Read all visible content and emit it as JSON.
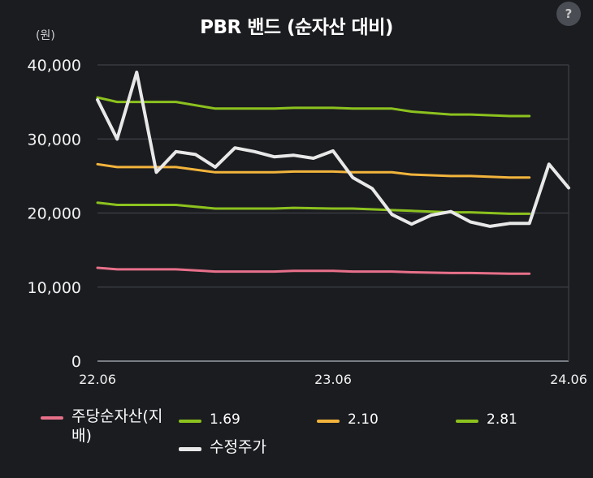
{
  "help_button": {
    "label": "?"
  },
  "chart_data": {
    "type": "line",
    "title": "PBR 밴드 (순자산 대비)",
    "ylabel": "(원)",
    "xlabel": "",
    "ylim": [
      0,
      40000
    ],
    "y_ticks": [
      0,
      10000,
      20000,
      30000,
      40000
    ],
    "y_tick_labels": [
      "0",
      "10,000",
      "20,000",
      "30,000",
      "40,000"
    ],
    "x_range": [
      "2022-06",
      "2024-06"
    ],
    "x_ticks": [
      "2022-06",
      "2023-06",
      "2024-06"
    ],
    "x_tick_labels": [
      "22.06",
      "23.06",
      "24.06"
    ],
    "grid": true,
    "legend_position": "bottom",
    "series": [
      {
        "name": "주당순자산(지배)",
        "color": "#e8708a",
        "x": [
          "2022-06",
          "2022-07",
          "2022-09",
          "2022-10",
          "2022-12",
          "2023-01",
          "2023-03",
          "2023-04",
          "2023-06",
          "2023-07",
          "2023-09",
          "2023-10",
          "2023-12",
          "2024-01",
          "2024-03",
          "2024-04"
        ],
        "y": [
          12600,
          12400,
          12400,
          12400,
          12100,
          12100,
          12100,
          12200,
          12200,
          12100,
          12100,
          12000,
          11900,
          11900,
          11800,
          11800
        ]
      },
      {
        "name": "1.69",
        "color": "#8cc21e",
        "x": [
          "2022-06",
          "2022-07",
          "2022-09",
          "2022-10",
          "2022-12",
          "2023-01",
          "2023-03",
          "2023-04",
          "2023-06",
          "2023-07",
          "2023-09",
          "2023-10",
          "2023-12",
          "2024-01",
          "2024-03",
          "2024-04"
        ],
        "y": [
          21400,
          21100,
          21100,
          21100,
          20600,
          20600,
          20600,
          20700,
          20600,
          20600,
          20400,
          20300,
          20100,
          20100,
          19900,
          19900
        ]
      },
      {
        "name": "2.10",
        "color": "#f2b43c",
        "x": [
          "2022-06",
          "2022-07",
          "2022-09",
          "2022-10",
          "2022-12",
          "2023-01",
          "2023-03",
          "2023-04",
          "2023-06",
          "2023-07",
          "2023-09",
          "2023-10",
          "2023-12",
          "2024-01",
          "2024-03",
          "2024-04"
        ],
        "y": [
          26600,
          26200,
          26200,
          26200,
          25500,
          25500,
          25500,
          25600,
          25600,
          25500,
          25500,
          25200,
          25000,
          25000,
          24800,
          24800
        ]
      },
      {
        "name": "2.81",
        "color": "#8cc21e",
        "x": [
          "2022-06",
          "2022-07",
          "2022-09",
          "2022-10",
          "2022-12",
          "2023-01",
          "2023-03",
          "2023-04",
          "2023-06",
          "2023-07",
          "2023-09",
          "2023-10",
          "2023-12",
          "2024-01",
          "2024-03",
          "2024-04"
        ],
        "y": [
          35600,
          35000,
          35000,
          35000,
          34100,
          34100,
          34100,
          34200,
          34200,
          34100,
          34100,
          33700,
          33300,
          33300,
          33100,
          33100
        ]
      },
      {
        "name": "수정주가",
        "color": "#e8e8e8",
        "x": [
          "2022-06",
          "2022-07",
          "2022-08",
          "2022-09",
          "2022-10",
          "2022-11",
          "2022-12",
          "2023-01",
          "2023-02",
          "2023-03",
          "2023-04",
          "2023-05",
          "2023-06",
          "2023-07",
          "2023-08",
          "2023-09",
          "2023-10",
          "2023-11",
          "2023-12",
          "2024-01",
          "2024-02",
          "2024-03",
          "2024-04",
          "2024-05",
          "2024-06"
        ],
        "y": [
          35300,
          30000,
          39000,
          25500,
          28300,
          27900,
          26200,
          28800,
          28300,
          27600,
          27800,
          27400,
          28400,
          24800,
          23300,
          19800,
          18500,
          19700,
          20200,
          18800,
          18200,
          18600,
          18600,
          26600,
          23400
        ]
      }
    ]
  }
}
